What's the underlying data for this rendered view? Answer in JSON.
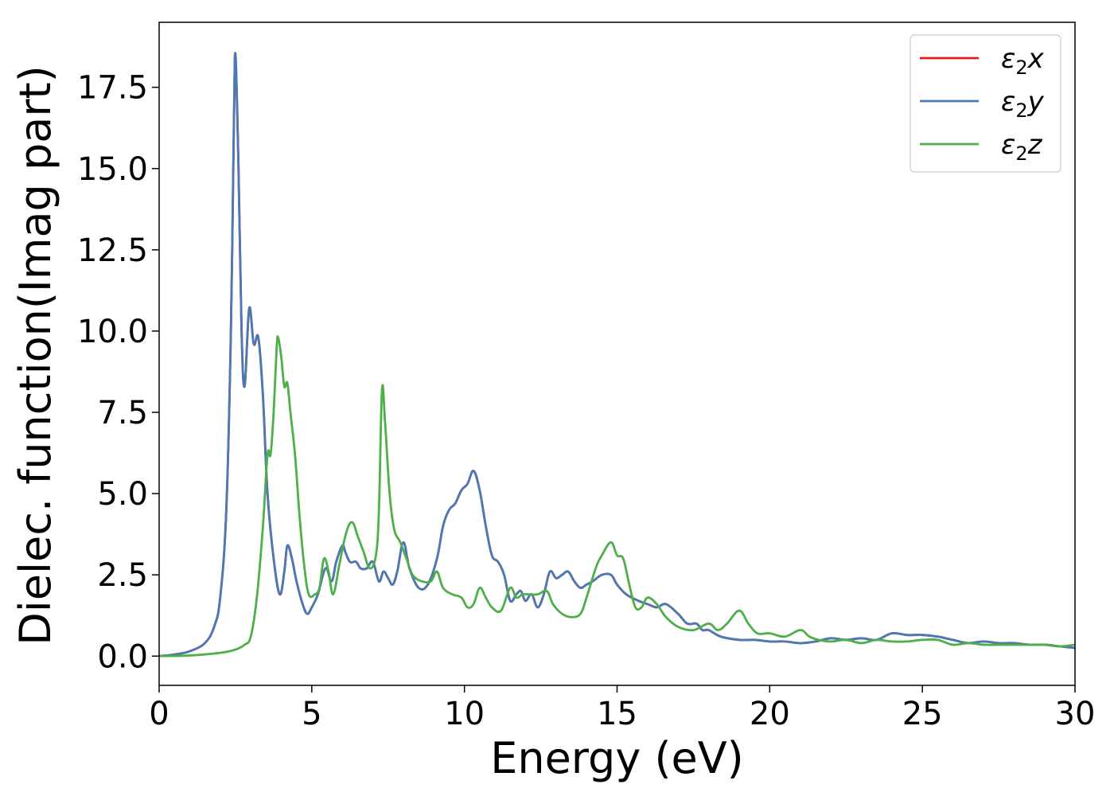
{
  "chart_data": {
    "type": "line",
    "title": "",
    "xlabel": "Energy (eV)",
    "ylabel": "Dielec. function(Imag part)",
    "xlim": [
      0,
      30
    ],
    "ylim": [
      -0.9,
      19.5
    ],
    "xticks": [
      0,
      5,
      10,
      15,
      20,
      25,
      30
    ],
    "xtick_labels": [
      "0",
      "5",
      "10",
      "15",
      "20",
      "25",
      "30"
    ],
    "yticks": [
      0.0,
      2.5,
      5.0,
      7.5,
      10.0,
      12.5,
      15.0,
      17.5
    ],
    "ytick_labels": [
      "0.0",
      "2.5",
      "5.0",
      "7.5",
      "10.0",
      "12.5",
      "15.0",
      "17.5"
    ],
    "grid": false,
    "legend_position": "top-right",
    "series": [
      {
        "name": "ε2x",
        "legend_base": "ε",
        "legend_sub": "2",
        "legend_suffix": "x",
        "color": "#e41a1c",
        "x": [
          0,
          0.5,
          1.0,
          1.5,
          1.8,
          2.0,
          2.2,
          2.35,
          2.45,
          2.5,
          2.6,
          2.7,
          2.8,
          2.95,
          3.1,
          3.25,
          3.4,
          3.55,
          3.75,
          3.95,
          4.1,
          4.2,
          4.35,
          4.5,
          4.7,
          4.85,
          5.0,
          5.2,
          5.45,
          5.65,
          5.8,
          6.0,
          6.1,
          6.25,
          6.45,
          6.6,
          6.8,
          7.0,
          7.2,
          7.35,
          7.5,
          7.65,
          7.8,
          8.0,
          8.2,
          8.5,
          8.8,
          9.1,
          9.3,
          9.5,
          9.7,
          9.9,
          10.1,
          10.3,
          10.5,
          10.7,
          10.9,
          11.1,
          11.3,
          11.5,
          11.7,
          11.85,
          12.0,
          12.2,
          12.4,
          12.6,
          12.8,
          13.0,
          13.2,
          13.4,
          13.6,
          13.8,
          14.0,
          14.2,
          14.5,
          14.8,
          15.0,
          15.3,
          15.7,
          16.0,
          16.3,
          16.6,
          17.0,
          17.3,
          17.6,
          17.8,
          18.0,
          18.4,
          19.0,
          19.5,
          20.0,
          20.5,
          21.0,
          21.5,
          22.0,
          22.5,
          23.0,
          23.5,
          24.0,
          24.5,
          25.0,
          25.5,
          26.0,
          26.5,
          27.0,
          27.5,
          28.0,
          28.5,
          29.0,
          29.5,
          30.0
        ],
        "y": [
          0.0,
          0.05,
          0.15,
          0.4,
          0.9,
          1.8,
          4.5,
          10.0,
          16.5,
          18.5,
          15.0,
          10.0,
          8.3,
          10.7,
          9.6,
          9.8,
          8.0,
          5.0,
          3.0,
          1.9,
          2.6,
          3.4,
          3.0,
          2.3,
          1.6,
          1.3,
          1.5,
          1.9,
          2.7,
          2.3,
          2.9,
          3.4,
          3.2,
          2.9,
          2.9,
          2.7,
          2.7,
          2.9,
          2.3,
          2.6,
          2.4,
          2.2,
          2.6,
          3.5,
          2.7,
          2.1,
          2.2,
          3.0,
          4.0,
          4.5,
          4.7,
          5.1,
          5.3,
          5.7,
          5.1,
          4.0,
          3.1,
          2.9,
          2.5,
          1.7,
          1.9,
          2.0,
          1.7,
          1.9,
          1.5,
          1.9,
          2.6,
          2.4,
          2.5,
          2.6,
          2.3,
          2.1,
          2.2,
          2.3,
          2.5,
          2.5,
          2.2,
          1.9,
          1.7,
          1.6,
          1.5,
          1.6,
          1.3,
          1.0,
          1.0,
          0.8,
          0.8,
          0.6,
          0.5,
          0.5,
          0.45,
          0.45,
          0.4,
          0.45,
          0.55,
          0.5,
          0.55,
          0.5,
          0.7,
          0.65,
          0.65,
          0.6,
          0.5,
          0.4,
          0.45,
          0.4,
          0.4,
          0.35,
          0.35,
          0.3,
          0.25
        ]
      },
      {
        "name": "ε2y",
        "legend_base": "ε",
        "legend_sub": "2",
        "legend_suffix": "y",
        "color": "#4a7ab5",
        "x": [
          0,
          0.5,
          1.0,
          1.5,
          1.8,
          2.0,
          2.2,
          2.35,
          2.45,
          2.5,
          2.6,
          2.7,
          2.8,
          2.95,
          3.1,
          3.25,
          3.4,
          3.55,
          3.75,
          3.95,
          4.1,
          4.2,
          4.35,
          4.5,
          4.7,
          4.85,
          5.0,
          5.2,
          5.45,
          5.65,
          5.8,
          6.0,
          6.1,
          6.25,
          6.45,
          6.6,
          6.8,
          7.0,
          7.2,
          7.35,
          7.5,
          7.65,
          7.8,
          8.0,
          8.2,
          8.5,
          8.8,
          9.1,
          9.3,
          9.5,
          9.7,
          9.9,
          10.1,
          10.3,
          10.5,
          10.7,
          10.9,
          11.1,
          11.3,
          11.5,
          11.7,
          11.85,
          12.0,
          12.2,
          12.4,
          12.6,
          12.8,
          13.0,
          13.2,
          13.4,
          13.6,
          13.8,
          14.0,
          14.2,
          14.5,
          14.8,
          15.0,
          15.3,
          15.7,
          16.0,
          16.3,
          16.6,
          17.0,
          17.3,
          17.6,
          17.8,
          18.0,
          18.4,
          19.0,
          19.5,
          20.0,
          20.5,
          21.0,
          21.5,
          22.0,
          22.5,
          23.0,
          23.5,
          24.0,
          24.5,
          25.0,
          25.5,
          26.0,
          26.5,
          27.0,
          27.5,
          28.0,
          28.5,
          29.0,
          29.5,
          30.0
        ],
        "y": [
          0.0,
          0.05,
          0.15,
          0.4,
          0.9,
          1.8,
          4.5,
          10.0,
          16.5,
          18.5,
          15.0,
          10.0,
          8.3,
          10.7,
          9.6,
          9.8,
          8.0,
          5.0,
          3.0,
          1.9,
          2.6,
          3.4,
          3.0,
          2.3,
          1.6,
          1.3,
          1.5,
          1.9,
          2.7,
          2.3,
          2.9,
          3.4,
          3.2,
          2.9,
          2.9,
          2.7,
          2.7,
          2.9,
          2.3,
          2.6,
          2.4,
          2.2,
          2.6,
          3.5,
          2.7,
          2.1,
          2.2,
          3.0,
          4.0,
          4.5,
          4.7,
          5.1,
          5.3,
          5.7,
          5.1,
          4.0,
          3.1,
          2.9,
          2.5,
          1.7,
          1.9,
          2.0,
          1.7,
          1.9,
          1.5,
          1.9,
          2.6,
          2.4,
          2.5,
          2.6,
          2.3,
          2.1,
          2.2,
          2.3,
          2.5,
          2.5,
          2.2,
          1.9,
          1.7,
          1.6,
          1.5,
          1.6,
          1.3,
          1.0,
          1.0,
          0.8,
          0.8,
          0.6,
          0.5,
          0.5,
          0.45,
          0.45,
          0.4,
          0.45,
          0.55,
          0.5,
          0.55,
          0.5,
          0.7,
          0.65,
          0.65,
          0.6,
          0.5,
          0.4,
          0.45,
          0.4,
          0.4,
          0.35,
          0.35,
          0.3,
          0.25
        ]
      },
      {
        "name": "ε2z",
        "legend_base": "ε",
        "legend_sub": "2",
        "legend_suffix": "z",
        "color": "#4daf4a",
        "x": [
          0,
          1.0,
          2.0,
          2.5,
          2.8,
          3.0,
          3.2,
          3.4,
          3.55,
          3.65,
          3.75,
          3.85,
          3.9,
          4.0,
          4.1,
          4.2,
          4.3,
          4.45,
          4.6,
          4.75,
          4.9,
          5.1,
          5.25,
          5.4,
          5.55,
          5.7,
          5.9,
          6.05,
          6.2,
          6.35,
          6.5,
          6.7,
          6.9,
          7.1,
          7.2,
          7.3,
          7.4,
          7.55,
          7.7,
          7.9,
          8.1,
          8.3,
          8.6,
          8.9,
          9.1,
          9.3,
          9.6,
          9.9,
          10.1,
          10.3,
          10.5,
          10.7,
          10.9,
          11.2,
          11.5,
          11.7,
          11.9,
          12.1,
          12.4,
          12.7,
          12.9,
          13.2,
          13.5,
          13.8,
          14.0,
          14.3,
          14.5,
          14.8,
          15.0,
          15.2,
          15.4,
          15.6,
          15.8,
          16.0,
          16.3,
          16.6,
          17.0,
          17.5,
          18.0,
          18.3,
          18.6,
          19.0,
          19.3,
          19.6,
          20.0,
          20.5,
          21.0,
          21.3,
          21.6,
          22.0,
          22.5,
          23.0,
          23.5,
          24.0,
          24.5,
          25.0,
          25.5,
          26.0,
          26.5,
          27.0,
          27.5,
          28.0,
          28.5,
          29.0,
          29.5,
          30.0
        ],
        "y": [
          0.0,
          0.02,
          0.1,
          0.2,
          0.35,
          0.6,
          1.8,
          4.0,
          6.2,
          6.2,
          7.5,
          9.5,
          9.8,
          9.2,
          8.3,
          8.4,
          7.5,
          6.2,
          4.3,
          2.8,
          1.9,
          1.9,
          2.1,
          3.0,
          2.6,
          1.9,
          2.8,
          3.5,
          4.0,
          4.1,
          3.7,
          3.2,
          2.7,
          3.1,
          4.5,
          8.2,
          7.2,
          5.0,
          3.9,
          3.5,
          3.0,
          2.5,
          2.3,
          2.3,
          2.6,
          2.1,
          1.9,
          1.8,
          1.5,
          1.6,
          2.1,
          1.8,
          1.5,
          1.4,
          2.1,
          1.8,
          1.9,
          1.9,
          1.9,
          2.0,
          1.6,
          1.3,
          1.2,
          1.3,
          1.8,
          2.7,
          3.1,
          3.5,
          3.1,
          3.0,
          2.2,
          1.5,
          1.5,
          1.8,
          1.6,
          1.2,
          0.9,
          0.8,
          1.0,
          0.8,
          1.0,
          1.4,
          1.0,
          0.7,
          0.7,
          0.6,
          0.8,
          0.6,
          0.5,
          0.45,
          0.5,
          0.4,
          0.5,
          0.45,
          0.45,
          0.5,
          0.5,
          0.35,
          0.4,
          0.35,
          0.35,
          0.35,
          0.35,
          0.35,
          0.3,
          0.35
        ]
      }
    ]
  }
}
